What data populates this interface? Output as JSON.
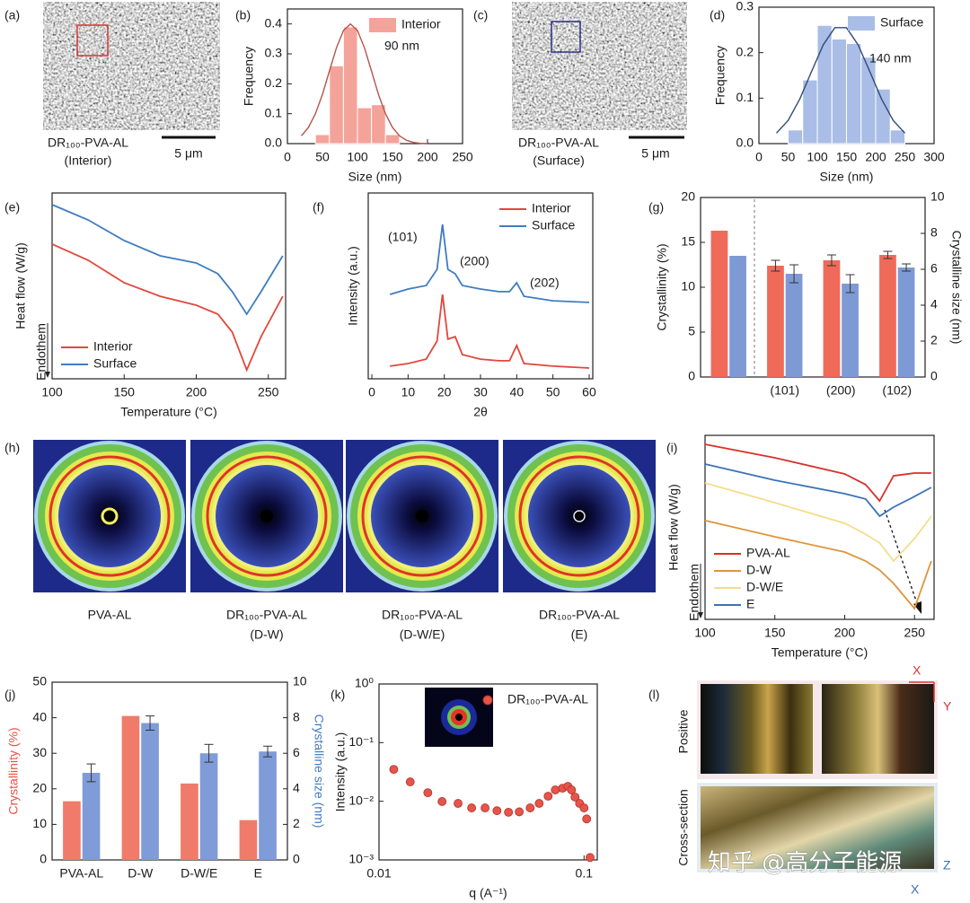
{
  "chart_data": [
    {
      "panel": "(b)",
      "type": "histogram",
      "xlabel": "Size (nm)",
      "ylabel": "Frequency",
      "xlim": [
        0,
        250
      ],
      "ylim": [
        0,
        0.45
      ],
      "xticks": [
        0,
        50,
        100,
        150,
        200,
        250
      ],
      "yticks": [
        {
          "value": 0,
          "label": "0.0"
        },
        0.1,
        0.2,
        0.3,
        0.4
      ],
      "bins": [
        40,
        60,
        80,
        100,
        120,
        140,
        160
      ],
      "series": [
        {
          "name": "Interior",
          "color": "#f4a39a",
          "values": [
            0.03,
            0.26,
            0.39,
            0.12,
            0.13,
            0.03
          ]
        }
      ],
      "fit": {
        "color": "#b5544a",
        "x": [
          20,
          30,
          40,
          50,
          60,
          70,
          80,
          90,
          100,
          110,
          120,
          130,
          140,
          150,
          160,
          170,
          180,
          190,
          200
        ],
        "values": [
          0.026,
          0.054,
          0.1,
          0.164,
          0.243,
          0.32,
          0.378,
          0.4,
          0.378,
          0.32,
          0.243,
          0.164,
          0.1,
          0.054,
          0.026,
          0.011,
          0.004,
          0.001,
          0.0
        ]
      },
      "annotations": [
        "90 nm"
      ],
      "legend": "upper right"
    },
    {
      "panel": "(d)",
      "type": "histogram",
      "xlabel": "Size (nm)",
      "ylabel": "Frequency",
      "xlim": [
        0,
        300
      ],
      "ylim": [
        0,
        0.3
      ],
      "xticks": [
        0,
        50,
        100,
        150,
        200,
        250,
        300
      ],
      "yticks": [
        {
          "value": 0,
          "label": "0.0"
        },
        0.1,
        0.2,
        0.3
      ],
      "bins": [
        50,
        75,
        100,
        125,
        150,
        175,
        200,
        225,
        250
      ],
      "series": [
        {
          "name": "Surface",
          "color": "#a9bde6",
          "values": [
            0.03,
            0.14,
            0.26,
            0.23,
            0.22,
            0.19,
            0.12,
            0.03
          ]
        }
      ],
      "fit": {
        "color": "#2e4a7a",
        "x": [
          30,
          50,
          70,
          90,
          110,
          130,
          150,
          170,
          190,
          210,
          230,
          250
        ],
        "values": [
          0.023,
          0.051,
          0.098,
          0.158,
          0.217,
          0.255,
          0.255,
          0.217,
          0.158,
          0.098,
          0.051,
          0.023
        ]
      },
      "annotations": [
        "140 nm"
      ],
      "legend": "upper right"
    },
    {
      "panel": "(e)",
      "type": "line",
      "xlabel": "Temperature (°C)",
      "ylabel": "Heat flow (W/g)",
      "note": "Endothem",
      "xlim": [
        100,
        262
      ],
      "ylim": [
        0,
        1
      ],
      "xticks": [
        100,
        150,
        200,
        250
      ],
      "x": [
        100,
        125,
        150,
        175,
        200,
        215,
        225,
        235,
        245,
        260
      ],
      "series": [
        {
          "name": "Interior",
          "color": "#e0483c",
          "values": [
            0.725,
            0.638,
            0.517,
            0.444,
            0.396,
            0.348,
            0.251,
            0.048,
            0.227,
            0.444
          ]
        },
        {
          "name": "Surface",
          "color": "#3f7cc0",
          "values": [
            0.937,
            0.855,
            0.744,
            0.662,
            0.623,
            0.565,
            0.469,
            0.348,
            0.469,
            0.662
          ]
        }
      ],
      "legend": "lower left"
    },
    {
      "panel": "(f)",
      "type": "line",
      "xlabel": "2θ",
      "ylabel": "Intensity (a.u.)",
      "xlim": [
        -1,
        61
      ],
      "ylim": [
        0,
        1
      ],
      "xticks": [
        0,
        10,
        20,
        30,
        40,
        50,
        60
      ],
      "x": [
        5,
        10,
        15,
        18,
        19.5,
        21,
        23,
        25,
        30,
        35,
        38,
        40,
        42,
        50,
        60
      ],
      "series": [
        {
          "name": "Interior",
          "color": "#e0483c",
          "values": [
            0.068,
            0.082,
            0.106,
            0.203,
            0.454,
            0.213,
            0.227,
            0.13,
            0.106,
            0.097,
            0.097,
            0.179,
            0.082,
            0.068,
            0.058
          ]
        },
        {
          "name": "Surface",
          "color": "#3f7cc0",
          "values": [
            0.454,
            0.483,
            0.502,
            0.589,
            0.831,
            0.589,
            0.565,
            0.502,
            0.483,
            0.469,
            0.469,
            0.517,
            0.444,
            0.42,
            0.411
          ]
        }
      ],
      "annotations": [
        "(101)",
        "(200)",
        "(202)"
      ],
      "legend": "upper right"
    },
    {
      "panel": "(g)",
      "type": "bar",
      "ylabel": "Crystallinity (%)",
      "y2label": "Crystalline size (nm)",
      "categories": [
        null,
        "(101)",
        "(200)",
        "(102)"
      ],
      "ylim": [
        0,
        20
      ],
      "yticks": [
        0,
        5,
        10,
        15,
        20
      ],
      "y2lim": [
        0,
        10
      ],
      "y2ticks": [
        0,
        2,
        4,
        6,
        8,
        10
      ],
      "series": [
        {
          "color": "#f06a5a",
          "values": [
            16.3,
            12.4,
            13.0,
            13.6
          ],
          "errors": [
            null,
            0.6,
            0.6,
            0.4
          ]
        },
        {
          "color": "#7e9ad4",
          "axis": "y2",
          "values": [
            6.75,
            5.75,
            5.2,
            6.1
          ],
          "errors": [
            null,
            0.5,
            0.5,
            0.2
          ]
        }
      ]
    },
    {
      "panel": "(i)",
      "type": "line",
      "xlabel": "Temperature (°C)",
      "ylabel": "Heat flow (W/g)",
      "note": "Endothem",
      "xlim": [
        100,
        264
      ],
      "ylim": [
        0,
        1
      ],
      "xticks": [
        100,
        150,
        200,
        250
      ],
      "x": [
        100,
        150,
        200,
        215,
        225,
        235,
        250,
        262
      ],
      "series": [
        {
          "name": "PVA-AL",
          "color": "#d8312c",
          "values": [
            0.951,
            0.878,
            0.79,
            0.732,
            0.644,
            0.78,
            0.795,
            0.795
          ]
        },
        {
          "name": "D-W",
          "color": "#e0943c",
          "values": [
            0.537,
            0.449,
            0.366,
            0.317,
            0.268,
            0.195,
            0.059,
            0.317
          ]
        },
        {
          "name": "D-W/E",
          "color": "#f5dc8a",
          "values": [
            0.741,
            0.634,
            0.522,
            0.463,
            0.415,
            0.317,
            0.439,
            0.561
          ]
        },
        {
          "name": "E",
          "color": "#3b73b5",
          "values": [
            0.844,
            0.756,
            0.683,
            0.654,
            0.561,
            0.61,
            0.668,
            0.717
          ]
        }
      ],
      "legend": "lower left"
    },
    {
      "panel": "(j)",
      "type": "bar",
      "ylabel": "Crystallinity (%)",
      "y2label": "Crystalline size (nm)",
      "ylabel_color": "#e8534a",
      "y2label_color": "#3f7cc0",
      "categories": [
        "PVA-AL",
        "D-W",
        "D-W/E",
        "E"
      ],
      "ylim": [
        0,
        50
      ],
      "yticks": [
        0,
        10,
        20,
        30,
        40,
        50
      ],
      "y2lim": [
        0,
        10
      ],
      "y2ticks": [
        0,
        2,
        4,
        6,
        8,
        10
      ],
      "series": [
        {
          "color": "#f07b6a",
          "values": [
            16.5,
            40.5,
            21.5,
            11.2
          ]
        },
        {
          "color": "#7f9bd8",
          "axis": "y2",
          "values": [
            4.9,
            7.7,
            6.0,
            6.1
          ],
          "errors": [
            0.5,
            0.4,
            0.5,
            0.3
          ]
        }
      ]
    },
    {
      "panel": "(k)",
      "type": "scatter",
      "xlabel": "q (A⁻¹)",
      "ylabel": "Intensity (a.u.)",
      "xlog": true,
      "ylog": true,
      "xlim": [
        0.01,
        0.116
      ],
      "ylim": [
        0.001,
        1
      ],
      "xticks": [
        0.01,
        0.1
      ],
      "yticks": [
        {
          "value": 0.001,
          "label": "10⁻³"
        },
        {
          "value": 0.01,
          "label": "10⁻²"
        },
        {
          "value": 0.1,
          "label": "10⁻¹"
        },
        {
          "value": 1,
          "label": "10⁰"
        }
      ],
      "x": [
        0.0118,
        0.0142,
        0.0173,
        0.0203,
        0.0243,
        0.0283,
        0.0329,
        0.0376,
        0.0428,
        0.0483,
        0.0546,
        0.0604,
        0.0668,
        0.0724,
        0.0785,
        0.0834,
        0.0869,
        0.0904,
        0.0951,
        0.1,
        0.103,
        0.107
      ],
      "series": [
        {
          "name": "DR₁₀₀-PVA-AL",
          "color": "#e8534a",
          "values": [
            0.035,
            0.0214,
            0.014,
            0.0099,
            0.0092,
            0.0077,
            0.0077,
            0.0069,
            0.0065,
            0.0066,
            0.0077,
            0.0092,
            0.0122,
            0.0156,
            0.0167,
            0.018,
            0.0156,
            0.0118,
            0.0092,
            0.0077,
            0.005,
            0.0011
          ]
        }
      ],
      "legend": "upper right"
    }
  ],
  "images": [
    {
      "panel": "(a)",
      "caption": [
        "DR₁₀₀-PVA-AL",
        "(Interior)"
      ],
      "scale": "5 μm"
    },
    {
      "panel": "(c)",
      "caption": [
        "DR₁₀₀-PVA-AL",
        "(Surface)"
      ],
      "scale": "5 μm"
    },
    {
      "panel": "(h)",
      "items": [
        {
          "caption": [
            "PVA-AL"
          ]
        },
        {
          "caption": [
            "DR₁₀₀-PVA-AL",
            "(D-W)"
          ]
        },
        {
          "caption": [
            "DR₁₀₀-PVA-AL",
            "(D-W/E)"
          ]
        },
        {
          "caption": [
            "DR₁₀₀-PVA-AL",
            "(E)"
          ]
        }
      ]
    },
    {
      "panel": "(l)",
      "row_labels": [
        "Positive",
        "Cross-section"
      ],
      "axes": [
        "X",
        "Y",
        "Z",
        "X"
      ]
    }
  ],
  "watermark": "知乎 @高分子能源"
}
